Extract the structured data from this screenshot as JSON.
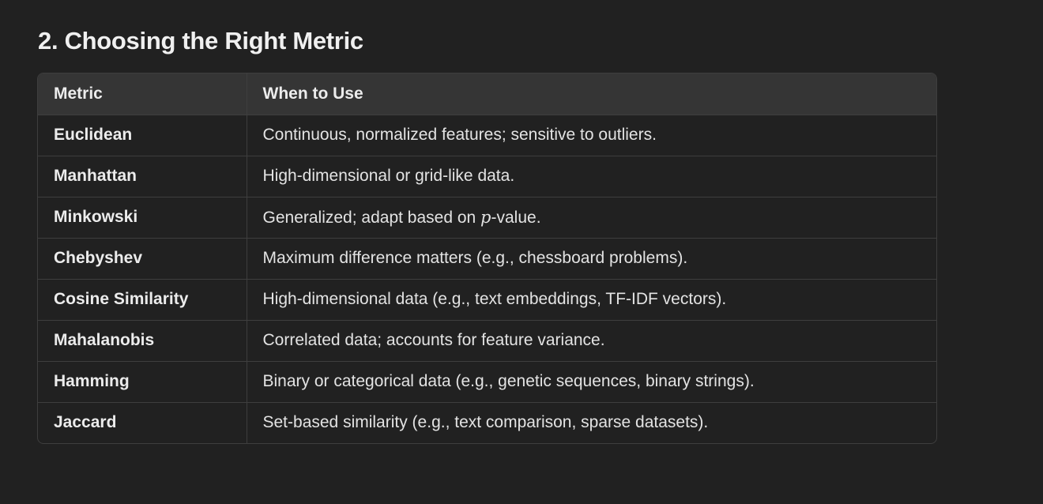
{
  "heading": "2. Choosing the Right Metric",
  "table": {
    "headers": [
      "Metric",
      "When to Use"
    ],
    "rows": [
      {
        "metric": "Euclidean",
        "usage": "Continuous, normalized features; sensitive to outliers."
      },
      {
        "metric": "Manhattan",
        "usage": "High-dimensional or grid-like data."
      },
      {
        "metric": "Minkowski",
        "usage_before": "Generalized; adapt based on ",
        "usage_math": "p",
        "usage_after": "-value."
      },
      {
        "metric": "Chebyshev",
        "usage": "Maximum difference matters (e.g., chessboard problems)."
      },
      {
        "metric": "Cosine Similarity",
        "usage": "High-dimensional data (e.g., text embeddings, TF-IDF vectors)."
      },
      {
        "metric": "Mahalanobis",
        "usage": "Correlated data; accounts for feature variance."
      },
      {
        "metric": "Hamming",
        "usage": "Binary or categorical data (e.g., genetic sequences, binary strings)."
      },
      {
        "metric": "Jaccard",
        "usage": "Set-based similarity (e.g., text comparison, sparse datasets)."
      }
    ]
  }
}
